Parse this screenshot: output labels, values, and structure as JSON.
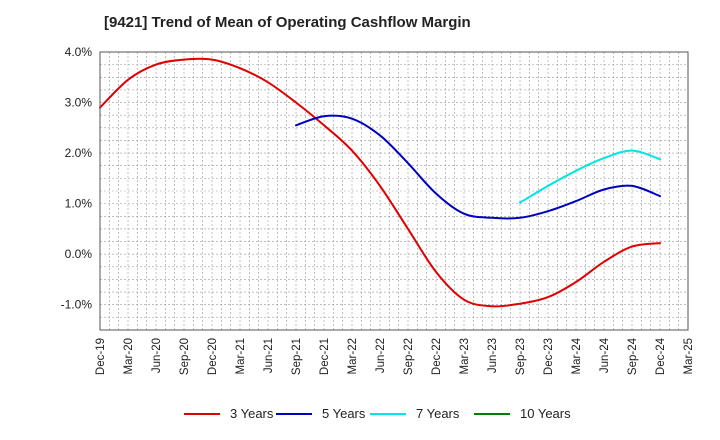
{
  "chart_data": {
    "type": "line",
    "title": "[9421]  Trend of Mean of Operating Cashflow Margin",
    "xlabel": "",
    "ylabel": "",
    "x_ticks": [
      "Dec-19",
      "Mar-20",
      "Jun-20",
      "Sep-20",
      "Dec-20",
      "Mar-21",
      "Jun-21",
      "Sep-21",
      "Dec-21",
      "Mar-22",
      "Jun-22",
      "Sep-22",
      "Dec-22",
      "Mar-23",
      "Jun-23",
      "Sep-23",
      "Dec-23",
      "Mar-24",
      "Jun-24",
      "Sep-24",
      "Dec-24",
      "Mar-25"
    ],
    "y_ticks": [
      "4.0%",
      "3.0%",
      "2.0%",
      "1.0%",
      "0.0%",
      "-1.0%"
    ],
    "ylim": [
      -1.5,
      4.0
    ],
    "y_unit": "%",
    "grid": true,
    "legend_position": "bottom",
    "series": [
      {
        "name": "3 Years",
        "color": "#e00000",
        "points": [
          [
            "Dec-19",
            2.9
          ],
          [
            "Mar-20",
            3.45
          ],
          [
            "Jun-20",
            3.75
          ],
          [
            "Sep-20",
            3.85
          ],
          [
            "Dec-20",
            3.85
          ],
          [
            "Mar-21",
            3.68
          ],
          [
            "Jun-21",
            3.4
          ],
          [
            "Sep-21",
            3.0
          ],
          [
            "Dec-21",
            2.55
          ],
          [
            "Mar-22",
            2.05
          ],
          [
            "Jun-22",
            1.35
          ],
          [
            "Sep-22",
            0.5
          ],
          [
            "Dec-22",
            -0.35
          ],
          [
            "Mar-23",
            -0.9
          ],
          [
            "Jun-23",
            -1.03
          ],
          [
            "Sep-23",
            -0.98
          ],
          [
            "Dec-23",
            -0.85
          ],
          [
            "Mar-24",
            -0.55
          ],
          [
            "Jun-24",
            -0.15
          ],
          [
            "Sep-24",
            0.15
          ],
          [
            "Dec-24",
            0.22
          ]
        ]
      },
      {
        "name": "5 Years",
        "color": "#0000c0",
        "points": [
          [
            "Sep-21",
            2.55
          ],
          [
            "Dec-21",
            2.73
          ],
          [
            "Mar-22",
            2.68
          ],
          [
            "Jun-22",
            2.35
          ],
          [
            "Sep-22",
            1.8
          ],
          [
            "Dec-22",
            1.2
          ],
          [
            "Mar-23",
            0.8
          ],
          [
            "Jun-23",
            0.72
          ],
          [
            "Sep-23",
            0.72
          ],
          [
            "Dec-23",
            0.85
          ],
          [
            "Mar-24",
            1.05
          ],
          [
            "Jun-24",
            1.28
          ],
          [
            "Sep-24",
            1.35
          ],
          [
            "Dec-24",
            1.15
          ]
        ]
      },
      {
        "name": "7 Years",
        "color": "#00e5e5",
        "points": [
          [
            "Sep-23",
            1.02
          ],
          [
            "Dec-23",
            1.35
          ],
          [
            "Mar-24",
            1.65
          ],
          [
            "Jun-24",
            1.9
          ],
          [
            "Sep-24",
            2.05
          ],
          [
            "Dec-24",
            1.88
          ]
        ]
      },
      {
        "name": "10 Years",
        "color": "#008000",
        "points": []
      }
    ]
  }
}
